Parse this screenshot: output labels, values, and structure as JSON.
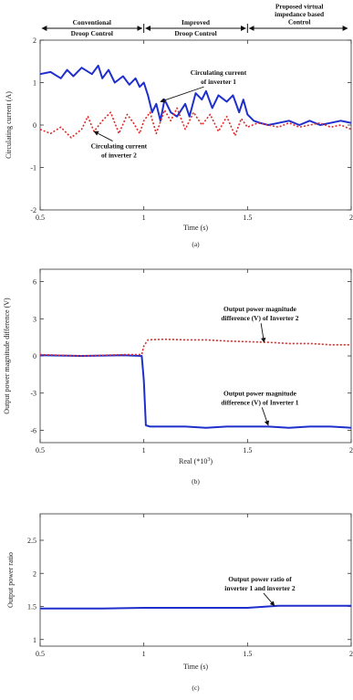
{
  "chart_data": [
    {
      "type": "line",
      "xlabel": "Time (s)",
      "ylabel": "Circulating current (A)",
      "xlim": [
        0.5,
        2
      ],
      "ylim": [
        -2,
        2
      ],
      "x_ticks": [
        "0.5",
        "1",
        "1.5",
        "2"
      ],
      "y_ticks": [
        "-2",
        "-1",
        "0",
        "1",
        "2"
      ],
      "caption": "(a)",
      "regions": [
        {
          "label_lines": [
            "Conventional",
            "Droop Control"
          ],
          "x_range": [
            0.5,
            1
          ]
        },
        {
          "label_lines": [
            "Improved",
            "Droop Control"
          ],
          "x_range": [
            1,
            1.5
          ]
        },
        {
          "label_lines": [
            "Proposed virtual",
            "impedance based",
            "Control"
          ],
          "x_range": [
            1.5,
            2
          ]
        }
      ],
      "series": [
        {
          "color": "#1f2fcc",
          "style": "solid",
          "x": [
            0.5,
            0.55,
            0.6,
            0.63,
            0.66,
            0.7,
            0.75,
            0.78,
            0.8,
            0.83,
            0.86,
            0.9,
            0.93,
            0.96,
            0.98,
            1.0,
            1.02,
            1.04,
            1.06,
            1.08,
            1.1,
            1.13,
            1.16,
            1.2,
            1.22,
            1.25,
            1.28,
            1.3,
            1.33,
            1.36,
            1.4,
            1.43,
            1.46,
            1.48,
            1.5,
            1.53,
            1.56,
            1.6,
            1.65,
            1.7,
            1.75,
            1.8,
            1.85,
            1.9,
            1.95,
            2.0
          ],
          "y": [
            1.2,
            1.25,
            1.1,
            1.3,
            1.15,
            1.35,
            1.2,
            1.4,
            1.1,
            1.3,
            1.0,
            1.15,
            0.95,
            1.1,
            0.9,
            1.0,
            0.7,
            0.3,
            0.5,
            0.1,
            0.6,
            0.3,
            0.2,
            0.5,
            0.2,
            0.75,
            0.6,
            0.8,
            0.4,
            0.7,
            0.55,
            0.7,
            0.3,
            0.6,
            0.25,
            0.1,
            0.05,
            0.0,
            0.05,
            0.1,
            0.0,
            0.1,
            0.0,
            0.05,
            0.1,
            0.05
          ]
        },
        {
          "color": "#dd2a2a",
          "style": "dotted",
          "x": [
            0.5,
            0.55,
            0.6,
            0.65,
            0.7,
            0.73,
            0.76,
            0.8,
            0.84,
            0.88,
            0.92,
            0.95,
            0.98,
            1.0,
            1.03,
            1.06,
            1.1,
            1.13,
            1.16,
            1.2,
            1.24,
            1.28,
            1.32,
            1.36,
            1.4,
            1.44,
            1.47,
            1.5,
            1.55,
            1.6,
            1.65,
            1.7,
            1.75,
            1.8,
            1.85,
            1.9,
            1.95,
            2.0
          ],
          "y": [
            -0.1,
            -0.2,
            -0.05,
            -0.3,
            -0.1,
            0.2,
            -0.15,
            0.1,
            0.3,
            -0.2,
            0.25,
            0.05,
            -0.2,
            0.1,
            0.3,
            -0.2,
            0.35,
            0.1,
            0.4,
            -0.1,
            0.3,
            0.0,
            0.25,
            -0.15,
            0.2,
            -0.25,
            0.15,
            -0.05,
            0.05,
            0.0,
            -0.05,
            0.05,
            -0.05,
            0.0,
            0.05,
            -0.05,
            0.0,
            -0.1
          ]
        }
      ],
      "annotations": [
        {
          "lines": [
            "Circulating current",
            "of inverter 1"
          ],
          "x": 1.36,
          "y": 1.18,
          "arrow_to": [
            1.08,
            0.55
          ]
        },
        {
          "lines": [
            "Circulating current",
            "of inverter 2"
          ],
          "x": 0.88,
          "y": -0.55,
          "arrow_to": [
            0.76,
            -0.15
          ]
        }
      ]
    },
    {
      "type": "line",
      "xlabel": "Real (*10^3)",
      "ylabel": "Output power magnitude difference (V)",
      "xlim": [
        0.5,
        2
      ],
      "ylim": [
        -7,
        7
      ],
      "x_ticks": [
        "0.5",
        "1",
        "1.5",
        "2"
      ],
      "y_ticks": [
        "-6",
        "-3",
        "0",
        "3",
        "6"
      ],
      "caption": "(b)",
      "series": [
        {
          "color": "#1f2fcc",
          "style": "solid",
          "x": [
            0.5,
            0.7,
            0.9,
            0.99,
            1.0,
            1.01,
            1.03,
            1.1,
            1.2,
            1.3,
            1.4,
            1.5,
            1.6,
            1.7,
            1.8,
            1.9,
            2.0
          ],
          "y": [
            0.05,
            0.0,
            0.05,
            0.0,
            -2.0,
            -5.6,
            -5.7,
            -5.7,
            -5.7,
            -5.8,
            -5.7,
            -5.7,
            -5.7,
            -5.8,
            -5.7,
            -5.7,
            -5.8
          ]
        },
        {
          "color": "#dd2a2a",
          "style": "dotted",
          "x": [
            0.5,
            0.7,
            0.9,
            0.99,
            1.0,
            1.02,
            1.1,
            1.2,
            1.3,
            1.4,
            1.5,
            1.6,
            1.7,
            1.8,
            1.9,
            2.0
          ],
          "y": [
            0.1,
            0.0,
            0.1,
            0.1,
            0.8,
            1.3,
            1.35,
            1.3,
            1.3,
            1.2,
            1.15,
            1.1,
            1.0,
            1.0,
            0.9,
            0.9
          ]
        }
      ],
      "annotations": [
        {
          "lines": [
            "Output power magnitude",
            "difference (V) of Inverter 2"
          ],
          "x": 1.56,
          "y": 3.6,
          "arrow_to": [
            1.58,
            1.1
          ]
        },
        {
          "lines": [
            "Output power magnitude",
            "difference (V) of Inverter 1"
          ],
          "x": 1.56,
          "y": -3.2,
          "arrow_to": [
            1.6,
            -5.6
          ]
        }
      ]
    },
    {
      "type": "line",
      "xlabel": "Time (s)",
      "ylabel": "Output power ratio",
      "xlim": [
        0.5,
        2
      ],
      "ylim": [
        0.9,
        2.9
      ],
      "x_ticks": [
        "0.5",
        "1",
        "1.5",
        "2"
      ],
      "y_ticks": [
        "1",
        "1.5",
        "2",
        "2.5"
      ],
      "caption": "(c)",
      "series": [
        {
          "color": "#1f2fcc",
          "style": "solid",
          "x": [
            0.5,
            0.8,
            1.0,
            1.2,
            1.4,
            1.5,
            1.55,
            1.6,
            1.65,
            1.7,
            1.8,
            1.9,
            2.0
          ],
          "y": [
            1.47,
            1.47,
            1.48,
            1.48,
            1.48,
            1.48,
            1.49,
            1.5,
            1.51,
            1.51,
            1.51,
            1.51,
            1.51
          ]
        }
      ],
      "annotations": [
        {
          "lines": [
            "Output power ratio of",
            "inverter 1 and inverter 2"
          ],
          "x": 1.56,
          "y": 1.88,
          "arrow_to": [
            1.63,
            1.51
          ]
        }
      ]
    }
  ]
}
